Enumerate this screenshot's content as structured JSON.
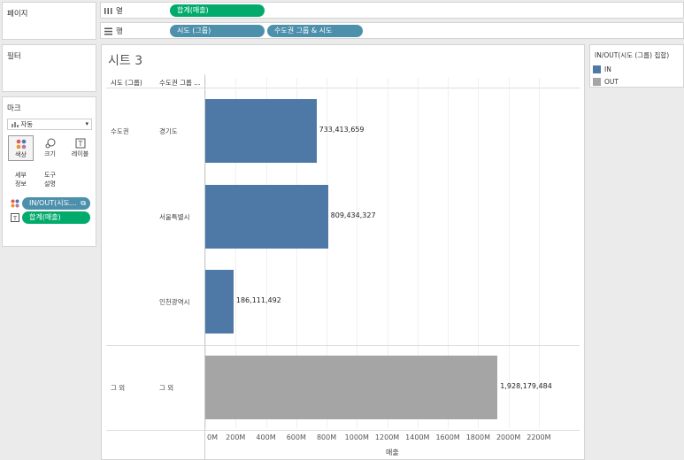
{
  "pages": {
    "title": "페이지"
  },
  "filters": {
    "title": "필터"
  },
  "columns_shelf": {
    "label": "열",
    "pills": [
      "합계(매출)"
    ]
  },
  "rows_shelf": {
    "label": "행",
    "pills": [
      "시도 (그룹)",
      "수도권 그룹 & 시도"
    ]
  },
  "marks": {
    "title": "마크",
    "type": "자동",
    "buttons": [
      {
        "label": "색상",
        "icon": "color-dots-icon"
      },
      {
        "label": "크기",
        "icon": "size-icon"
      },
      {
        "label": "레이블",
        "icon": "label-icon"
      },
      {
        "label": "세부\n정보",
        "icon": "detail-icon"
      },
      {
        "label": "도구\n설명",
        "icon": "tooltip-icon"
      }
    ],
    "field_pills": [
      {
        "label": "IN/OUT(시도...",
        "icon": "color-dots-icon"
      },
      {
        "label": "합계(매출)",
        "icon": "label-icon"
      }
    ]
  },
  "sheet": {
    "title": "시트 3"
  },
  "headers": {
    "col1": "시도 (그룹)",
    "col2": "수도권 그룹 ..."
  },
  "legend": {
    "title": "IN/OUT(시도 (그룹) 집합)",
    "items": [
      {
        "label": "IN",
        "color": "#4e79a7"
      },
      {
        "label": "OUT",
        "color": "#a5a5a5"
      }
    ]
  },
  "chart_data": {
    "type": "bar",
    "orientation": "horizontal",
    "groups": [
      {
        "group": "수도권",
        "rows": [
          {
            "category": "경기도",
            "value": 733413659,
            "label": "733,413,659",
            "series": "IN"
          },
          {
            "category": "서울특별시",
            "value": 809434327,
            "label": "809,434,327",
            "series": "IN"
          },
          {
            "category": "인천광역시",
            "value": 186111492,
            "label": "186,111,492",
            "series": "IN"
          }
        ]
      },
      {
        "group": "그 외",
        "rows": [
          {
            "category": "그 외",
            "value": 1928179484,
            "label": "1,928,179,484",
            "series": "OUT"
          }
        ]
      }
    ],
    "xlabel": "매출",
    "xlim": [
      0,
      2300000000
    ],
    "ticks": [
      "0M",
      "200M",
      "400M",
      "600M",
      "800M",
      "1000M",
      "1200M",
      "1400M",
      "1600M",
      "1800M",
      "2000M",
      "2200M"
    ],
    "tick_values": [
      0,
      200000000,
      400000000,
      600000000,
      800000000,
      1000000000,
      1200000000,
      1400000000,
      1600000000,
      1800000000,
      2000000000,
      2200000000
    ],
    "colors": {
      "IN": "#4e79a7",
      "OUT": "#a5a5a5"
    }
  }
}
